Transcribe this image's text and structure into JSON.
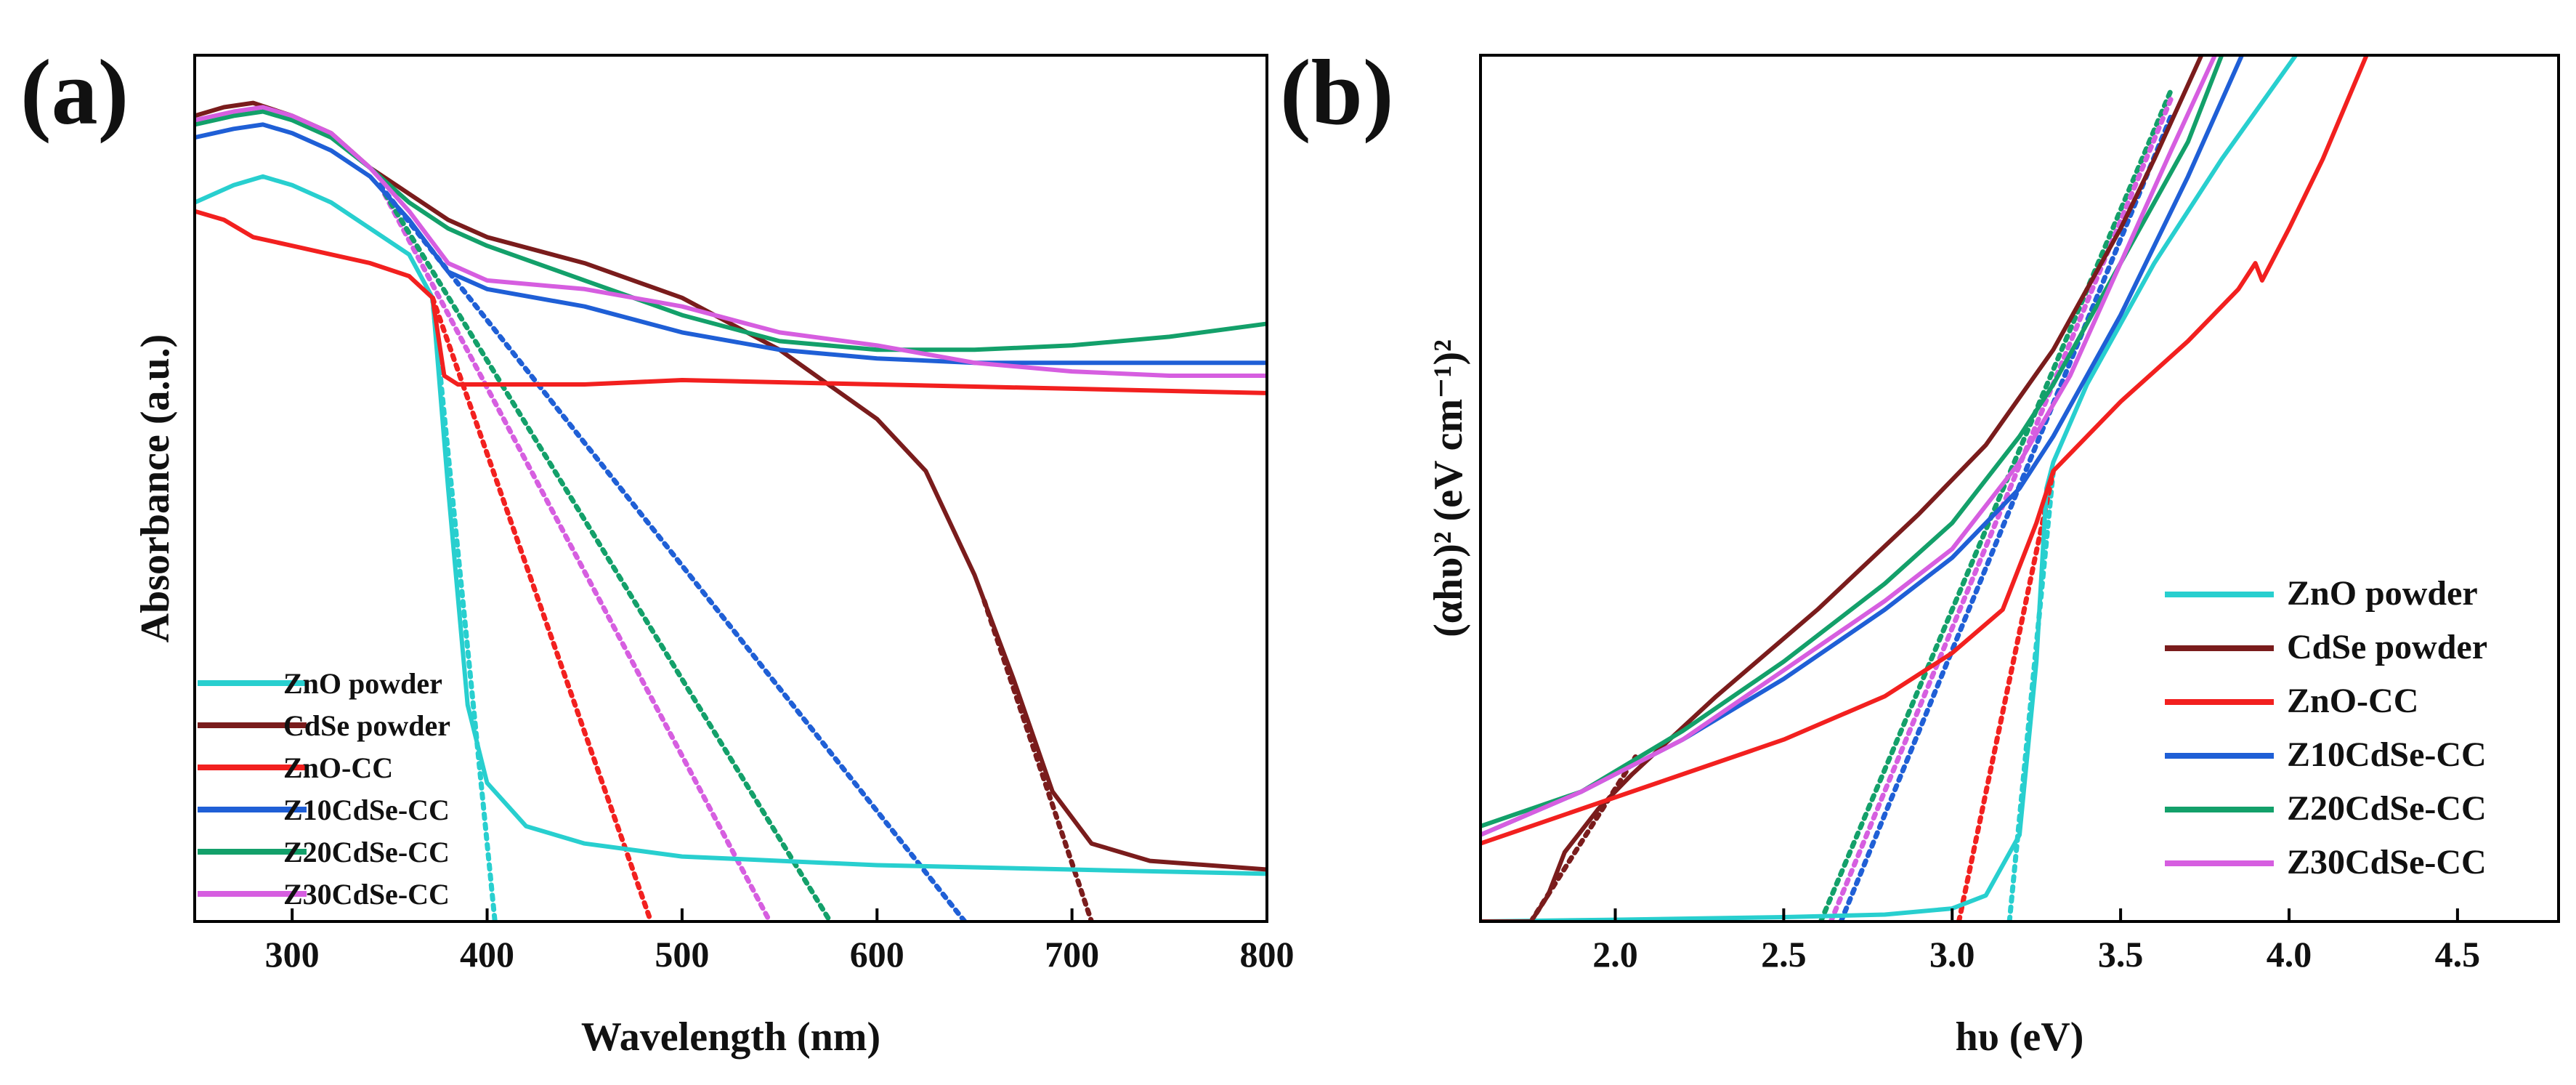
{
  "colors": {
    "zno_powder": "#28cfcf",
    "cdse_powder": "#7a1c1c",
    "zno_cc": "#f2201f",
    "z10": "#1f5fd6",
    "z20": "#13a06a",
    "z30": "#d65ee0"
  },
  "chart_data": [
    {
      "panel_label": "(a)",
      "type": "line",
      "title": "",
      "xlabel": "Wavelength (nm)",
      "ylabel": "Absorbance (a.u.)",
      "xlim": [
        250,
        800
      ],
      "ylim": [
        0,
        1
      ],
      "x_ticks": [
        300,
        400,
        500,
        600,
        700,
        800
      ],
      "x_tick_labels": [
        "300",
        "400",
        "500",
        "600",
        "700",
        "800"
      ],
      "y_ticks_labeled": false,
      "legend_position": "bottom-left",
      "legend": [
        "ZnO powder",
        "CdSe powder",
        "ZnO-CC",
        "Z10CdSe-CC",
        "Z20CdSe-CC",
        "Z30CdSe-CC"
      ],
      "series": [
        {
          "name": "ZnO powder",
          "color_key": "zno_powder",
          "x": [
            250,
            270,
            285,
            300,
            320,
            340,
            360,
            372,
            380,
            390,
            400,
            420,
            450,
            500,
            600,
            700,
            800
          ],
          "y": [
            0.83,
            0.85,
            0.86,
            0.85,
            0.83,
            0.8,
            0.77,
            0.72,
            0.5,
            0.25,
            0.16,
            0.11,
            0.09,
            0.075,
            0.065,
            0.06,
            0.055
          ]
        },
        {
          "name": "CdSe powder",
          "color_key": "cdse_powder",
          "x": [
            250,
            265,
            280,
            300,
            320,
            340,
            360,
            380,
            400,
            450,
            500,
            550,
            600,
            625,
            650,
            670,
            690,
            710,
            740,
            800
          ],
          "y": [
            0.93,
            0.94,
            0.945,
            0.93,
            0.91,
            0.87,
            0.84,
            0.81,
            0.79,
            0.76,
            0.72,
            0.66,
            0.58,
            0.52,
            0.4,
            0.28,
            0.15,
            0.09,
            0.07,
            0.06
          ]
        },
        {
          "name": "ZnO-CC",
          "color_key": "zno_cc",
          "x": [
            250,
            265,
            280,
            300,
            320,
            340,
            360,
            372,
            378,
            385,
            400,
            450,
            500,
            600,
            700,
            800
          ],
          "y": [
            0.82,
            0.81,
            0.79,
            0.78,
            0.77,
            0.76,
            0.745,
            0.72,
            0.63,
            0.62,
            0.62,
            0.62,
            0.625,
            0.62,
            0.615,
            0.61
          ]
        },
        {
          "name": "Z10CdSe-CC",
          "color_key": "z10",
          "x": [
            250,
            270,
            285,
            300,
            320,
            340,
            360,
            380,
            400,
            450,
            500,
            550,
            600,
            650,
            700,
            800
          ],
          "y": [
            0.905,
            0.915,
            0.92,
            0.91,
            0.89,
            0.86,
            0.81,
            0.75,
            0.73,
            0.71,
            0.68,
            0.66,
            0.65,
            0.645,
            0.645,
            0.645
          ]
        },
        {
          "name": "Z20CdSe-CC",
          "color_key": "z20",
          "x": [
            250,
            270,
            285,
            300,
            320,
            340,
            360,
            380,
            400,
            450,
            500,
            550,
            600,
            650,
            700,
            750,
            800
          ],
          "y": [
            0.92,
            0.93,
            0.935,
            0.925,
            0.905,
            0.87,
            0.83,
            0.8,
            0.78,
            0.74,
            0.7,
            0.67,
            0.66,
            0.66,
            0.665,
            0.675,
            0.69
          ]
        },
        {
          "name": "Z30CdSe-CC",
          "color_key": "z30",
          "x": [
            250,
            270,
            285,
            300,
            320,
            340,
            360,
            380,
            400,
            450,
            500,
            550,
            600,
            650,
            700,
            750,
            800
          ],
          "y": [
            0.925,
            0.935,
            0.94,
            0.93,
            0.91,
            0.87,
            0.82,
            0.76,
            0.74,
            0.73,
            0.71,
            0.68,
            0.665,
            0.645,
            0.635,
            0.63,
            0.63
          ]
        }
      ],
      "tangents": [
        {
          "name": "ZnO powder fit",
          "color_key": "zno_powder",
          "x": [
            372,
            404
          ],
          "y": [
            0.72,
            0.0
          ]
        },
        {
          "name": "ZnO-CC fit",
          "color_key": "zno_cc",
          "x": [
            372,
            484
          ],
          "y": [
            0.72,
            0.0
          ]
        },
        {
          "name": "Z30CdSe-CC fit",
          "color_key": "z30",
          "x": [
            345,
            545
          ],
          "y": [
            0.85,
            0.0
          ]
        },
        {
          "name": "Z20CdSe-CC fit",
          "color_key": "z20",
          "x": [
            345,
            576
          ],
          "y": [
            0.85,
            0.0
          ]
        },
        {
          "name": "Z10CdSe-CC fit",
          "color_key": "z10",
          "x": [
            345,
            645
          ],
          "y": [
            0.85,
            0.0
          ]
        },
        {
          "name": "CdSe powder fit",
          "color_key": "cdse_powder",
          "x": [
            655,
            710
          ],
          "y": [
            0.37,
            0.0
          ]
        }
      ]
    },
    {
      "panel_label": "(b)",
      "type": "line",
      "title": "",
      "xlabel": "hυ (eV)",
      "ylabel": "(αhυ)² (eV cm⁻¹)²",
      "xlim": [
        1.6,
        4.8
      ],
      "ylim": [
        0,
        1
      ],
      "x_ticks": [
        2.0,
        2.5,
        3.0,
        3.5,
        4.0,
        4.5
      ],
      "x_tick_labels": [
        "2.0",
        "2.5",
        "3.0",
        "3.5",
        "4.0",
        "4.5"
      ],
      "y_ticks_labeled": false,
      "legend_position": "bottom-right",
      "legend": [
        "ZnO powder",
        "CdSe powder",
        "ZnO-CC",
        "Z10CdSe-CC",
        "Z20CdSe-CC",
        "Z30CdSe-CC"
      ],
      "series": [
        {
          "name": "ZnO powder",
          "color_key": "zno_powder",
          "x": [
            1.6,
            2.0,
            2.5,
            2.8,
            3.0,
            3.1,
            3.2,
            3.25,
            3.28,
            3.3,
            3.4,
            3.6,
            3.8,
            4.02
          ],
          "y": [
            0.0,
            0.002,
            0.005,
            0.008,
            0.015,
            0.03,
            0.1,
            0.3,
            0.5,
            0.53,
            0.62,
            0.76,
            0.88,
            1.0
          ]
        },
        {
          "name": "CdSe powder",
          "color_key": "cdse_powder",
          "x": [
            1.6,
            1.75,
            1.8,
            1.85,
            1.95,
            2.05,
            2.3,
            2.6,
            2.9,
            3.1,
            3.3,
            3.5,
            3.6,
            3.74
          ],
          "y": [
            0.0,
            0.0,
            0.03,
            0.08,
            0.13,
            0.17,
            0.26,
            0.36,
            0.47,
            0.55,
            0.66,
            0.8,
            0.88,
            1.0
          ]
        },
        {
          "name": "ZnO-CC",
          "color_key": "zno_cc",
          "x": [
            1.6,
            1.9,
            2.2,
            2.5,
            2.8,
            3.0,
            3.15,
            3.25,
            3.3,
            3.5,
            3.7,
            3.85,
            3.9,
            3.92,
            4.0,
            4.1,
            4.23
          ],
          "y": [
            0.09,
            0.13,
            0.17,
            0.21,
            0.26,
            0.31,
            0.36,
            0.46,
            0.52,
            0.6,
            0.67,
            0.73,
            0.76,
            0.74,
            0.8,
            0.88,
            1.0
          ]
        },
        {
          "name": "Z10CdSe-CC",
          "color_key": "z10",
          "x": [
            1.6,
            1.9,
            2.2,
            2.5,
            2.8,
            3.0,
            3.2,
            3.3,
            3.5,
            3.7,
            3.86
          ],
          "y": [
            0.1,
            0.15,
            0.21,
            0.28,
            0.36,
            0.42,
            0.5,
            0.56,
            0.7,
            0.86,
            1.0
          ]
        },
        {
          "name": "Z20CdSe-CC",
          "color_key": "z20",
          "x": [
            1.6,
            1.9,
            2.2,
            2.5,
            2.8,
            3.0,
            3.2,
            3.3,
            3.5,
            3.7,
            3.8
          ],
          "y": [
            0.11,
            0.15,
            0.22,
            0.3,
            0.39,
            0.46,
            0.56,
            0.62,
            0.76,
            0.9,
            1.0
          ]
        },
        {
          "name": "Z30CdSe-CC",
          "color_key": "z30",
          "x": [
            1.6,
            1.9,
            2.2,
            2.5,
            2.8,
            3.0,
            3.2,
            3.35,
            3.5,
            3.65,
            3.78
          ],
          "y": [
            0.1,
            0.15,
            0.21,
            0.29,
            0.37,
            0.43,
            0.53,
            0.63,
            0.76,
            0.89,
            1.0
          ]
        }
      ],
      "tangents": [
        {
          "name": "ZnO powder fit",
          "color_key": "zno_powder",
          "x": [
            3.17,
            3.3
          ],
          "y": [
            0.0,
            0.52
          ]
        },
        {
          "name": "ZnO-CC fit",
          "color_key": "zno_cc",
          "x": [
            3.02,
            3.3
          ],
          "y": [
            0.0,
            0.52
          ]
        },
        {
          "name": "Z20CdSe-CC fit",
          "color_key": "z20",
          "x": [
            2.61,
            3.65
          ],
          "y": [
            0.0,
            0.96
          ]
        },
        {
          "name": "Z30CdSe-CC fit",
          "color_key": "z30",
          "x": [
            2.64,
            3.65
          ],
          "y": [
            0.0,
            0.95
          ]
        },
        {
          "name": "Z10CdSe-CC fit",
          "color_key": "z10",
          "x": [
            2.67,
            3.65
          ],
          "y": [
            0.0,
            0.93
          ]
        },
        {
          "name": "CdSe powder fit",
          "color_key": "cdse_powder",
          "x": [
            1.75,
            2.06
          ],
          "y": [
            0.0,
            0.19
          ]
        }
      ]
    }
  ]
}
